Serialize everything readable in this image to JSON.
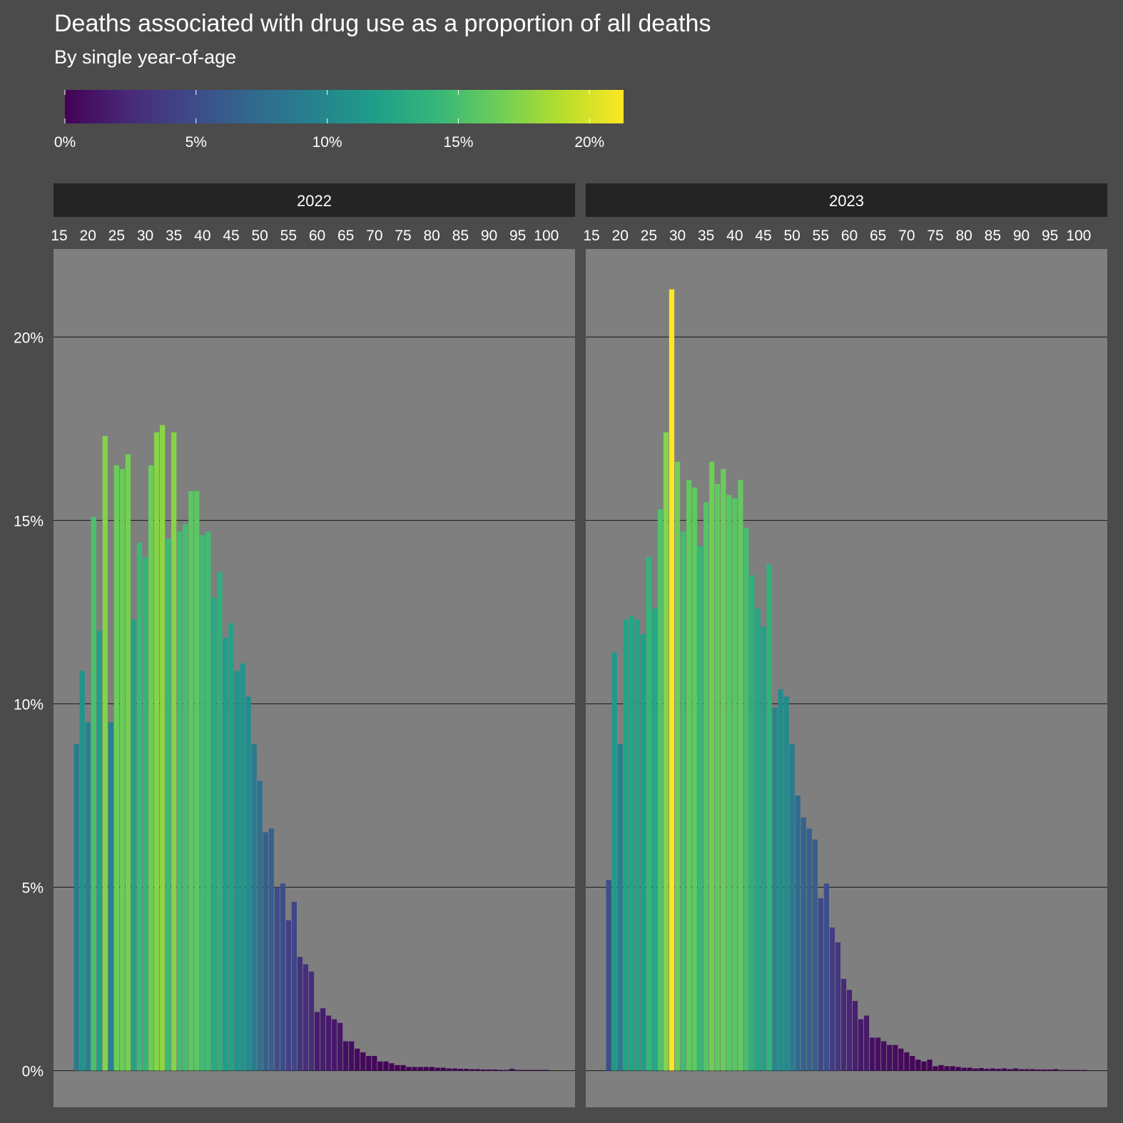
{
  "chart_data": {
    "type": "bar",
    "title": "Deaths associated with drug use as a proportion of all deaths",
    "subtitle": "By single year-of-age",
    "xlabel": "",
    "ylabel": "",
    "x_ticks": [
      15,
      20,
      25,
      30,
      35,
      40,
      45,
      50,
      55,
      60,
      65,
      70,
      75,
      80,
      85,
      90,
      95,
      100
    ],
    "y_ticks": [
      0,
      5,
      10,
      15,
      20
    ],
    "y_tick_labels": [
      "0%",
      "5%",
      "10%",
      "15%",
      "20%"
    ],
    "xlim": [
      14,
      105
    ],
    "ylim": [
      -1,
      22.4
    ],
    "grid": true,
    "legend": {
      "type": "colorbar",
      "placement": "top-left",
      "min": 0,
      "max": 21.3,
      "ticks": [
        0,
        5,
        10,
        15,
        20
      ],
      "tick_labels": [
        "0%",
        "5%",
        "10%",
        "15%",
        "20%"
      ],
      "palette": [
        "#440154",
        "#482878",
        "#3e4989",
        "#31688e",
        "#26828e",
        "#1f9e89",
        "#35b779",
        "#6ece58",
        "#b5de2b",
        "#fde725"
      ]
    },
    "panels": [
      {
        "name": "2022",
        "x": [
          18,
          19,
          20,
          21,
          22,
          23,
          24,
          25,
          26,
          27,
          28,
          29,
          30,
          31,
          32,
          33,
          34,
          35,
          36,
          37,
          38,
          39,
          40,
          41,
          42,
          43,
          44,
          45,
          46,
          47,
          48,
          49,
          50,
          51,
          52,
          53,
          54,
          55,
          56,
          57,
          58,
          59,
          60,
          61,
          62,
          63,
          64,
          65,
          66,
          67,
          68,
          69,
          70,
          71,
          72,
          73,
          74,
          75,
          76,
          77,
          78,
          79,
          80,
          81,
          82,
          83,
          84,
          85,
          86,
          87,
          88,
          89,
          90,
          91,
          92,
          93,
          94,
          95,
          96,
          97,
          98,
          99,
          100
        ],
        "values": [
          8.9,
          10.9,
          9.5,
          15.1,
          12.0,
          17.3,
          9.5,
          16.5,
          16.4,
          16.8,
          12.3,
          14.4,
          14.0,
          16.5,
          17.4,
          17.6,
          14.5,
          17.4,
          14.7,
          14.9,
          15.8,
          15.8,
          14.6,
          14.7,
          12.9,
          13.6,
          11.8,
          12.2,
          10.9,
          11.1,
          10.2,
          8.9,
          7.9,
          6.5,
          6.6,
          5.0,
          5.1,
          4.1,
          4.6,
          3.1,
          2.9,
          2.7,
          1.6,
          1.7,
          1.5,
          1.4,
          1.3,
          0.8,
          0.8,
          0.6,
          0.5,
          0.4,
          0.4,
          0.25,
          0.25,
          0.2,
          0.15,
          0.15,
          0.1,
          0.1,
          0.1,
          0.1,
          0.1,
          0.08,
          0.08,
          0.06,
          0.06,
          0.05,
          0.05,
          0.04,
          0.04,
          0.03,
          0.03,
          0.03,
          0.02,
          0.02,
          0.05,
          0.02,
          0.02,
          0.02,
          0.02,
          0.02,
          0.02
        ]
      },
      {
        "name": "2023",
        "x": [
          18,
          19,
          20,
          21,
          22,
          23,
          24,
          25,
          26,
          27,
          28,
          29,
          30,
          31,
          32,
          33,
          34,
          35,
          36,
          37,
          38,
          39,
          40,
          41,
          42,
          43,
          44,
          45,
          46,
          47,
          48,
          49,
          50,
          51,
          52,
          53,
          54,
          55,
          56,
          57,
          58,
          59,
          60,
          61,
          62,
          63,
          64,
          65,
          66,
          67,
          68,
          69,
          70,
          71,
          72,
          73,
          74,
          75,
          76,
          77,
          78,
          79,
          80,
          81,
          82,
          83,
          84,
          85,
          86,
          87,
          88,
          89,
          90,
          91,
          92,
          93,
          94,
          95,
          96,
          97,
          98,
          99,
          100,
          101
        ],
        "values": [
          5.2,
          11.4,
          8.9,
          12.3,
          12.4,
          12.3,
          11.9,
          14.0,
          12.6,
          15.3,
          17.4,
          21.3,
          16.6,
          14.7,
          16.1,
          15.9,
          14.3,
          15.5,
          16.6,
          16.0,
          16.4,
          15.7,
          15.6,
          16.1,
          14.8,
          13.5,
          12.6,
          12.1,
          13.8,
          9.9,
          10.4,
          10.2,
          8.9,
          7.5,
          6.9,
          6.6,
          6.3,
          4.7,
          5.1,
          3.9,
          3.5,
          2.5,
          2.2,
          1.9,
          1.4,
          1.5,
          0.9,
          0.9,
          0.8,
          0.7,
          0.7,
          0.6,
          0.5,
          0.4,
          0.3,
          0.25,
          0.3,
          0.12,
          0.15,
          0.12,
          0.12,
          0.1,
          0.08,
          0.08,
          0.06,
          0.07,
          0.05,
          0.06,
          0.05,
          0.06,
          0.04,
          0.06,
          0.04,
          0.04,
          0.04,
          0.03,
          0.03,
          0.03,
          0.04,
          0.02,
          0.02,
          0.02,
          0.02,
          0.02
        ]
      }
    ]
  }
}
